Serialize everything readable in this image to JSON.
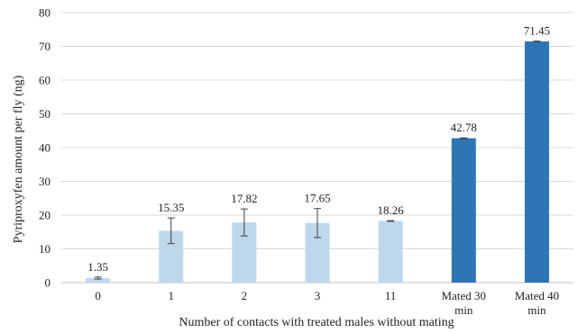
{
  "chart_data": {
    "type": "bar",
    "title": "",
    "xlabel": "Number of contacts with treated males without mating",
    "ylabel": "Pyriproxyfen amount per fly (ng)",
    "ylim": [
      0,
      80
    ],
    "yticks": [
      "0",
      "10",
      "20",
      "30",
      "40",
      "50",
      "60",
      "70",
      "80"
    ],
    "grid": true,
    "categories": [
      [
        "0"
      ],
      [
        "1"
      ],
      [
        "2"
      ],
      [
        "3"
      ],
      [
        "11"
      ],
      [
        "Mated 30",
        "min"
      ],
      [
        "Mated 40",
        "min"
      ]
    ],
    "values": [
      1.35,
      15.35,
      17.82,
      17.65,
      18.26,
      42.78,
      71.45
    ],
    "value_labels": [
      "1.35",
      "15.35",
      "17.82",
      "17.65",
      "18.26",
      "42.78",
      "71.45"
    ],
    "errors": [
      0.3,
      3.8,
      4.0,
      4.3,
      0.1,
      0.1,
      0.1
    ],
    "bar_colors": [
      "#bdd7ee",
      "#bdd7ee",
      "#bdd7ee",
      "#bdd7ee",
      "#bdd7ee",
      "#2e75b6",
      "#2e75b6"
    ]
  }
}
